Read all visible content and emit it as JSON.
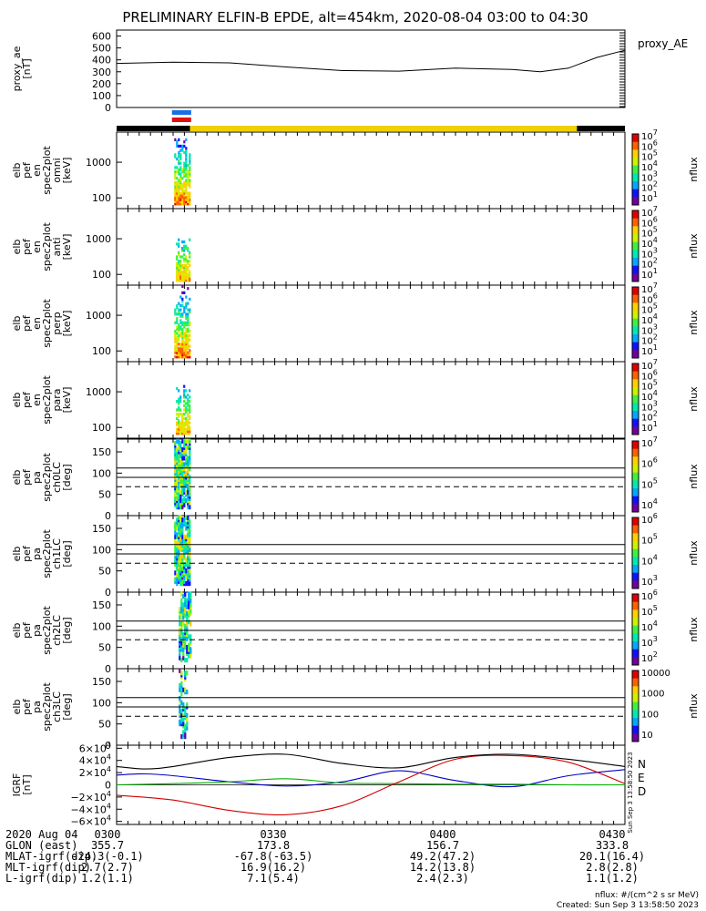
{
  "title": "PRELIMINARY ELFIN-B EPDE, alt=454km, 2020-08-04 03:00 to 04:30",
  "colors": {
    "rainbow": [
      "#7000a0",
      "#1010ff",
      "#00a8ff",
      "#00e8b0",
      "#40f040",
      "#d0f000",
      "#ffd000",
      "#ff6000",
      "#e00000"
    ]
  },
  "chart_data": [
    {
      "id": "proxy_ae",
      "type": "line",
      "ylabel": [
        "proxy_ae",
        "[nT]"
      ],
      "ylim": [
        0,
        650
      ],
      "yticks": [
        "0",
        "100",
        "200",
        "300",
        "400",
        "500",
        "600"
      ],
      "xlim": [
        0,
        90
      ],
      "legend": "proxy_AE",
      "series": [
        {
          "name": "proxy_AE",
          "x": [
            0,
            10,
            20,
            30,
            40,
            50,
            60,
            70,
            75,
            80,
            85,
            90
          ],
          "y": [
            370,
            380,
            375,
            340,
            310,
            305,
            330,
            320,
            300,
            330,
            420,
            480
          ]
        }
      ]
    },
    {
      "id": "en_omni",
      "type": "heatmap",
      "ylabel": [
        "elb",
        "pef",
        "en",
        "spec2plot",
        "omni",
        "[keV]"
      ],
      "yticks": [
        "1000",
        "100"
      ],
      "ylim": [
        50,
        7000
      ],
      "yscale": "log",
      "colorbar": {
        "label": "nflux",
        "ticks": [
          "10^7",
          "10^6",
          "10^5",
          "10^4",
          "10^3",
          "10^2",
          "10^1"
        ]
      },
      "time_range_min": [
        10.2,
        13.0
      ],
      "peak_energy_kev": 70
    },
    {
      "id": "en_anti",
      "type": "heatmap",
      "ylabel": [
        "elb",
        "pef",
        "en",
        "spec2plot",
        "anti",
        "[keV]"
      ],
      "yticks": [
        "1000",
        "100"
      ],
      "ylim": [
        50,
        7000
      ],
      "yscale": "log",
      "colorbar": {
        "label": "nflux",
        "ticks": [
          "10^7",
          "10^6",
          "10^5",
          "10^4",
          "10^3",
          "10^2",
          "10^1"
        ]
      },
      "time_range_min": [
        10.5,
        13.0
      ],
      "peak_energy_kev": 70
    },
    {
      "id": "en_perp",
      "type": "heatmap",
      "ylabel": [
        "elb",
        "pef",
        "en",
        "spec2plot",
        "perp",
        "[keV]"
      ],
      "yticks": [
        "1000",
        "100"
      ],
      "ylim": [
        50,
        7000
      ],
      "yscale": "log",
      "colorbar": {
        "label": "nflux",
        "ticks": [
          "10^7",
          "10^6",
          "10^5",
          "10^4",
          "10^3",
          "10^2",
          "10^1"
        ]
      },
      "time_range_min": [
        10.2,
        13.0
      ],
      "peak_energy_kev": 70
    },
    {
      "id": "en_para",
      "type": "heatmap",
      "ylabel": [
        "elb",
        "pef",
        "en",
        "spec2plot",
        "para",
        "[keV]"
      ],
      "yticks": [
        "1000",
        "100"
      ],
      "ylim": [
        50,
        7000
      ],
      "yscale": "log",
      "colorbar": {
        "label": "nflux",
        "ticks": [
          "10^7",
          "10^6",
          "10^5",
          "10^4",
          "10^3",
          "10^2",
          "10^1"
        ]
      },
      "time_range_min": [
        10.5,
        13.0
      ],
      "peak_energy_kev": 70
    },
    {
      "id": "pa_ch0",
      "type": "heatmap",
      "ylabel": [
        "elb",
        "pef",
        "pa",
        "spec2plot",
        "ch0LC",
        "[deg]"
      ],
      "yticks": [
        "150",
        "100",
        "50",
        "0"
      ],
      "ylim": [
        0,
        180
      ],
      "ref_lines": [
        112,
        90
      ],
      "dashed_line": 68,
      "colorbar": {
        "label": "nflux",
        "ticks": [
          "10^7",
          "10^6",
          "10^5",
          "10^4"
        ]
      },
      "time_range_min": [
        10.2,
        13.0
      ]
    },
    {
      "id": "pa_ch1",
      "type": "heatmap",
      "ylabel": [
        "elb",
        "pef",
        "pa",
        "spec2plot",
        "ch1LC",
        "[deg]"
      ],
      "yticks": [
        "150",
        "100",
        "50",
        "0"
      ],
      "ylim": [
        0,
        180
      ],
      "ref_lines": [
        112,
        90
      ],
      "dashed_line": 68,
      "colorbar": {
        "label": "nflux",
        "ticks": [
          "10^6",
          "10^5",
          "10^4",
          "10^3"
        ]
      },
      "time_range_min": [
        10.2,
        13.0
      ]
    },
    {
      "id": "pa_ch2",
      "type": "heatmap",
      "ylabel": [
        "elb",
        "pef",
        "pa",
        "spec2plot",
        "ch2LC",
        "[deg]"
      ],
      "yticks": [
        "150",
        "100",
        "50",
        "0"
      ],
      "ylim": [
        0,
        180
      ],
      "ref_lines": [
        112,
        90
      ],
      "dashed_line": 68,
      "colorbar": {
        "label": "nflux",
        "ticks": [
          "10^6",
          "10^5",
          "10^4",
          "10^3",
          "10^2"
        ]
      },
      "time_range_min": [
        11.0,
        13.0
      ]
    },
    {
      "id": "pa_ch3",
      "type": "heatmap",
      "ylabel": [
        "elb",
        "pef",
        "pa",
        "spec2plot",
        "ch3LC",
        "[deg]"
      ],
      "yticks": [
        "150",
        "100",
        "50",
        "0"
      ],
      "ylim": [
        0,
        180
      ],
      "ref_lines": [
        112,
        90
      ],
      "dashed_line": 68,
      "colorbar": {
        "label": "nflux",
        "ticks": [
          "10000",
          "1000",
          "100",
          "10"
        ]
      },
      "time_range_min": [
        11.0,
        12.5
      ]
    },
    {
      "id": "igrf",
      "type": "line",
      "ylabel": [
        "IGRF",
        "[nT]"
      ],
      "ylim": [
        -65000,
        65000
      ],
      "yticks": [
        "6×10^4",
        "4×10^4",
        "2×10^4",
        "0",
        "−2×10^4",
        "−4×10^4",
        "−6×10^4"
      ],
      "legend": [
        "N",
        "E",
        "D"
      ],
      "series": [
        {
          "name": "N",
          "color": "#0000c8",
          "x": [
            0,
            5,
            10,
            20,
            30,
            40,
            50,
            60,
            70,
            80,
            90
          ],
          "y": [
            16000,
            18000,
            15000,
            5000,
            -2000,
            5000,
            23000,
            7000,
            -3000,
            15000,
            25000
          ]
        },
        {
          "name": "E",
          "color": "#00b000",
          "x": [
            0,
            10,
            20,
            30,
            40,
            50,
            60,
            70,
            80,
            90
          ],
          "y": [
            0,
            2000,
            5000,
            10000,
            3000,
            2000,
            1000,
            1000,
            0,
            0
          ]
        },
        {
          "name": "D",
          "color": "#d00000",
          "x": [
            0,
            10,
            20,
            30,
            40,
            50,
            60,
            70,
            80,
            90
          ],
          "y": [
            -17000,
            -25000,
            -42000,
            -49000,
            -34000,
            5000,
            42000,
            48000,
            37000,
            2000
          ]
        },
        {
          "name": "total",
          "color": "#000000",
          "x": [
            0,
            5,
            10,
            20,
            30,
            40,
            50,
            60,
            70,
            80,
            90
          ],
          "y": [
            30000,
            26000,
            30000,
            45000,
            50000,
            35000,
            28000,
            45000,
            50000,
            42000,
            30000
          ]
        }
      ]
    }
  ],
  "bars": {
    "top": [
      "#1a6fe8",
      "#e01010"
    ],
    "orbit": {
      "black_end_min": 13.0,
      "yellow_end_min": 81.5
    }
  },
  "side_note": "Sun Sep  3 13:58:50 2023",
  "footer": {
    "rows": [
      {
        "label": "2020 Aug 04",
        "values": [
          "0300",
          "0330",
          "0400",
          "0430"
        ]
      },
      {
        "label": "GLON (east)",
        "values": [
          "355.7",
          "173.8",
          "156.7",
          "333.8"
        ]
      },
      {
        "label": "MLAT-igrf(dip)",
        "values": [
          "-24.3(-0.1)",
          "-67.8(-63.5)",
          "49.2(47.2)",
          "20.1(16.4)"
        ]
      },
      {
        "label": "MLT-igrf(dip)",
        "values": [
          "2.7(2.7)",
          "16.9(16.2)",
          "14.2(13.8)",
          "2.8(2.8)"
        ]
      },
      {
        "label": "L-igrf(dip)",
        "values": [
          "1.2(1.1)",
          "7.1(5.4)",
          "2.4(2.3)",
          "1.1(1.2)"
        ]
      }
    ],
    "units_note": "nflux: #/(cm^2 s sr MeV)",
    "created": "Created: Sun Sep  3 13:58:50 2023"
  }
}
